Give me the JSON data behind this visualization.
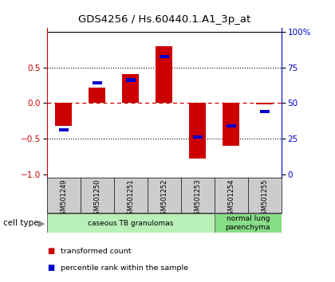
{
  "title": "GDS4256 / Hs.60440.1.A1_3p_at",
  "samples": [
    "GSM501249",
    "GSM501250",
    "GSM501251",
    "GSM501252",
    "GSM501253",
    "GSM501254",
    "GSM501255"
  ],
  "red_values": [
    -0.32,
    0.22,
    0.4,
    0.8,
    -0.78,
    -0.6,
    -0.02
  ],
  "blue_positions": [
    -0.38,
    0.28,
    0.32,
    0.65,
    -0.48,
    -0.32,
    -0.12
  ],
  "ylim": [
    -1.05,
    1.05
  ],
  "yticks_left": [
    -1.0,
    -0.5,
    0.0,
    0.5
  ],
  "yticks_right": [
    0,
    25,
    50,
    75,
    100
  ],
  "cell_type_groups": [
    {
      "label": "caseous TB granulomas",
      "cols": 5,
      "color": "#b8f0b8"
    },
    {
      "label": "normal lung\nparenchyma",
      "cols": 2,
      "color": "#88dd88"
    }
  ],
  "cell_type_label": "cell type",
  "legend_red": "transformed count",
  "legend_blue": "percentile rank within the sample",
  "bar_width": 0.5,
  "background_color": "#ffffff",
  "red_color": "#cc0000",
  "blue_color": "#0000cc",
  "label_bg": "#cccccc",
  "bar_edge_color": "#999999"
}
